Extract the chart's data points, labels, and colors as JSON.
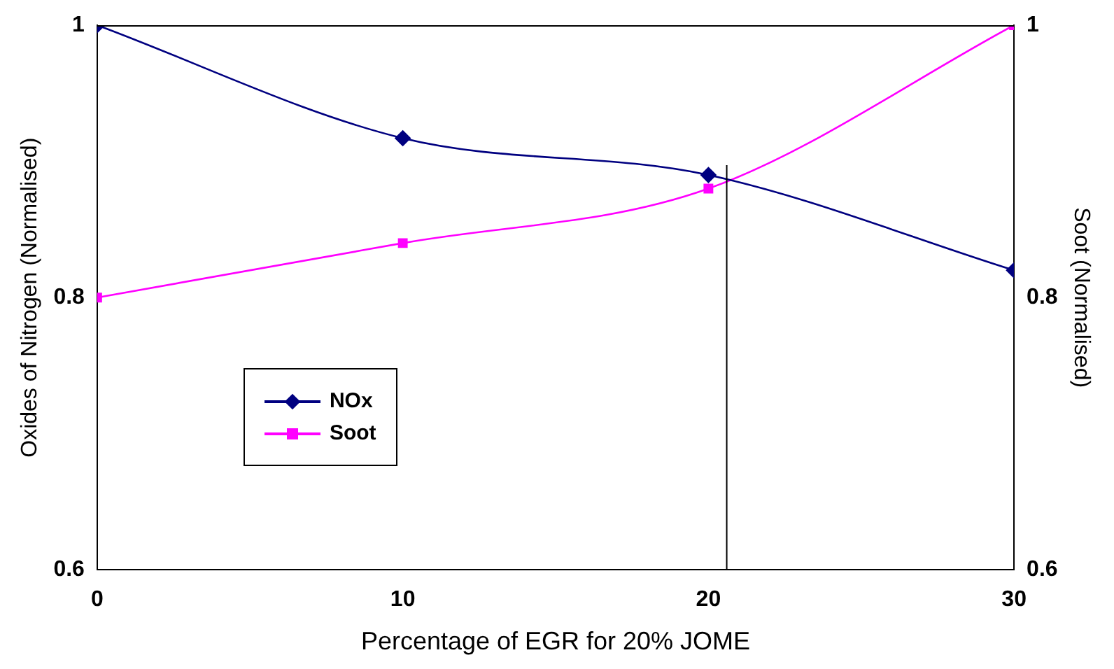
{
  "chart_data": {
    "type": "line",
    "xlabel": "Percentage of EGR for 20% JOME",
    "ylabel": "Oxides of Nitrogen (Normalised)",
    "y2label": "Soot (Normalised)",
    "x": [
      0,
      10,
      20,
      30
    ],
    "series": [
      {
        "name": "NOx",
        "color": "#000080",
        "values": [
          1,
          0.917,
          0.89,
          0.82
        ],
        "marker": "diamond"
      },
      {
        "name": "Soot",
        "color": "#ff00ff",
        "values": [
          0.8,
          0.84,
          0.88,
          1
        ],
        "marker": "square",
        "axis": "y2"
      }
    ],
    "xlim": [
      0,
      30
    ],
    "xticks": [
      0,
      10,
      20,
      30
    ],
    "ylim": [
      0.6,
      1
    ],
    "yticks": [
      0.6,
      0.8,
      1
    ],
    "y2lim": [
      0.6,
      1
    ],
    "y2ticks": [
      0.6,
      0.8,
      1
    ],
    "ref_lines": [
      {
        "axis": "x",
        "value": 20.6,
        "color": "#000000"
      }
    ],
    "grid": false,
    "legend": "bottom left"
  }
}
